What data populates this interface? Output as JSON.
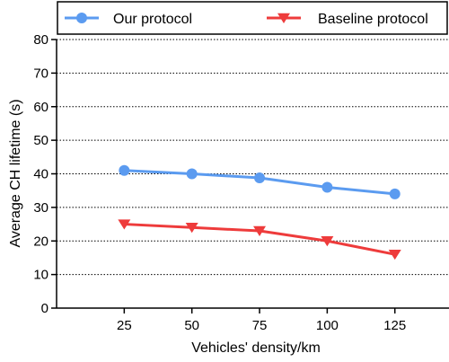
{
  "chart_data": {
    "type": "line",
    "title": "",
    "xlabel": "Vehicles' density/km",
    "ylabel": "Average CH lifetime (s)",
    "x": [
      25,
      50,
      75,
      100,
      125
    ],
    "x_tick_labels": [
      "25",
      "50",
      "75",
      "100",
      "125"
    ],
    "xlim": [
      0,
      145
    ],
    "ylim": [
      0,
      80
    ],
    "y_ticks": [
      0,
      10,
      20,
      30,
      40,
      50,
      60,
      70,
      80
    ],
    "grid": "horizontal dotted",
    "legend_position": "top",
    "series": [
      {
        "name": "Our protocol",
        "values": [
          41,
          40,
          38.8,
          36,
          34
        ],
        "color": "#5b9bf0",
        "marker": "circle"
      },
      {
        "name": "Baseline protocol",
        "values": [
          25,
          24,
          23,
          20,
          16
        ],
        "color": "#ee3b3b",
        "marker": "triangle-down"
      }
    ]
  }
}
